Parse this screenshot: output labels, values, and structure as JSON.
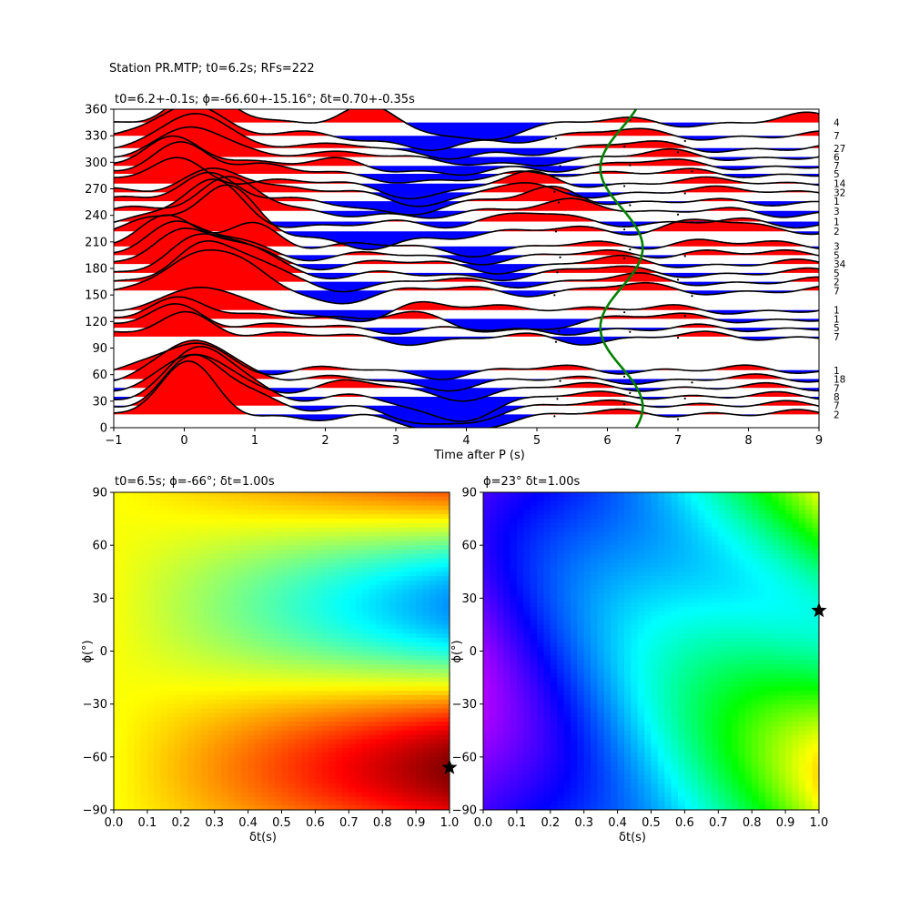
{
  "figure_title": "Station PR.MTP; t0=6.2s; RFs=222",
  "chart_data": [
    {
      "type": "line",
      "name": "receiver-function-section",
      "title": "t0=6.2+-0.1s; ϕ=-66.60+-15.16°; δt=0.70+-0.35s",
      "xlabel": "Time after P (s)",
      "ylabel": "",
      "xlim": [
        -1,
        9
      ],
      "ylim": [
        0,
        360
      ],
      "xticks": [
        "−1",
        "0",
        "1",
        "2",
        "3",
        "4",
        "5",
        "6",
        "7",
        "8",
        "9"
      ],
      "yticks": [
        "0",
        "30",
        "60",
        "90",
        "120",
        "150",
        "180",
        "210",
        "240",
        "270",
        "300",
        "330",
        "360"
      ],
      "fill_positive_color": "#ff0000",
      "fill_negative_color": "#0000ff",
      "trace_color": "#000000",
      "curve_color": "#008000",
      "traces": [
        {
          "baz": 15,
          "count": "2",
          "p1": [
            0.05,
            55
          ],
          "p2": [
            0.8,
            -7
          ],
          "n1": [
            3.6,
            -20
          ],
          "n2": [
            7.2,
            3
          ]
        },
        {
          "baz": 25,
          "count": "7",
          "p1": [
            0.15,
            50
          ],
          "p2": [
            0.9,
            10
          ],
          "n1": [
            3.5,
            -24
          ],
          "n2": [
            7.0,
            4
          ]
        },
        {
          "baz": 35,
          "count": "8",
          "p1": [
            0.25,
            52
          ],
          "p2": [
            0.95,
            8
          ],
          "n1": [
            3.7,
            -24
          ],
          "n2": [
            6.8,
            3
          ]
        },
        {
          "baz": 45,
          "count": "7",
          "p1": [
            0.2,
            36
          ],
          "p2": [
            2.4,
            5
          ],
          "n1": [
            3.8,
            -8
          ],
          "n2": [
            6.7,
            2
          ]
        },
        {
          "baz": 55,
          "count": "18",
          "p1": [
            0.15,
            42
          ],
          "p2": [
            1.0,
            8
          ],
          "n1": [
            3.4,
            -8
          ],
          "n2": [
            5.3,
            -3
          ]
        },
        {
          "baz": 65,
          "count": "1",
          "p1": [
            0.15,
            30
          ],
          "p2": [
            1.0,
            0
          ],
          "n1": [
            3.3,
            -4
          ],
          "n2": [
            6.5,
            2
          ]
        },
        {
          "baz": 103,
          "count": "7",
          "p1": [
            0.05,
            27
          ],
          "p2": [
            1.2,
            0
          ],
          "n1": [
            3.8,
            -5
          ],
          "n2": [
            5.7,
            -3
          ]
        },
        {
          "baz": 113,
          "count": "5",
          "p1": [
            -0.1,
            26
          ],
          "p2": [
            1.1,
            0
          ],
          "n1": [
            4.6,
            -6
          ],
          "n2": [
            6.8,
            -3
          ]
        },
        {
          "baz": 123,
          "count": "1",
          "p1": [
            0.0,
            26
          ],
          "p2": [
            3.1,
            12
          ],
          "n1": [
            4.4,
            -18
          ],
          "n2": [
            6.2,
            3
          ]
        },
        {
          "baz": 133,
          "count": "1",
          "p1": [
            0.2,
            30
          ],
          "p2": [
            3.2,
            8
          ],
          "n1": [
            2.2,
            -10
          ],
          "n2": [
            5.3,
            6
          ]
        },
        {
          "baz": 155,
          "count": "7",
          "p1": [
            0.1,
            40
          ],
          "p2": [
            0.9,
            25
          ],
          "n1": [
            1.9,
            -10
          ],
          "n2": [
            6.2,
            4
          ]
        },
        {
          "baz": 165,
          "count": "2",
          "p1": [
            0.2,
            38
          ],
          "p2": [
            1.0,
            20
          ],
          "n1": [
            2.5,
            -5
          ],
          "n2": [
            6.4,
            4
          ]
        },
        {
          "baz": 175,
          "count": "5",
          "p1": [
            0.1,
            34
          ],
          "p2": [
            0.9,
            26
          ],
          "n1": [
            3.7,
            -6
          ],
          "n2": [
            5.7,
            4
          ]
        },
        {
          "baz": 185,
          "count": "34",
          "p1": [
            -0.1,
            34
          ],
          "p2": [
            0.8,
            20
          ],
          "n1": [
            4.5,
            -4
          ],
          "n2": [
            6.3,
            4
          ]
        },
        {
          "baz": 195,
          "count": "5",
          "p1": [
            -0.2,
            32
          ],
          "p2": [
            0.7,
            16
          ],
          "n1": [
            3.8,
            -5
          ],
          "n2": [
            7.4,
            6
          ]
        },
        {
          "baz": 205,
          "count": "3",
          "p1": [
            -0.3,
            30
          ],
          "p2": [
            1.0,
            25
          ],
          "n1": [
            3.9,
            -5
          ],
          "n2": [
            7.3,
            8
          ]
        },
        {
          "baz": 222,
          "count": "2",
          "p1": [
            0.6,
            50
          ],
          "p2": [
            -0.6,
            10
          ],
          "n1": [
            2.6,
            -22
          ],
          "n2": [
            7.3,
            14
          ]
        },
        {
          "baz": 233,
          "count": "1",
          "p1": [
            0.4,
            46
          ],
          "p2": [
            4.8,
            8
          ],
          "n1": [
            2.0,
            -8
          ],
          "n2": [
            8.5,
            -4
          ]
        },
        {
          "baz": 245,
          "count": "3",
          "p1": [
            0.7,
            40
          ],
          "p2": [
            5.7,
            12
          ],
          "n1": [
            2.4,
            -8
          ],
          "n2": [
            8.3,
            -4
          ]
        },
        {
          "baz": 256,
          "count": "1",
          "p1": [
            0.4,
            32
          ],
          "p2": [
            5.3,
            12
          ],
          "n1": [
            2.8,
            -12
          ],
          "n2": [
            7.8,
            -3
          ]
        },
        {
          "baz": 266,
          "count": "32",
          "p1": [
            0.5,
            30
          ],
          "p2": [
            4.6,
            8
          ],
          "n1": [
            3.6,
            -10
          ],
          "n2": [
            8.2,
            4
          ]
        },
        {
          "baz": 276,
          "count": "14",
          "p1": [
            -0.1,
            28
          ],
          "p2": [
            5.0,
            10
          ],
          "n1": [
            3.5,
            -12
          ],
          "n2": [
            8.0,
            4
          ]
        },
        {
          "baz": 287,
          "count": "5",
          "p1": [
            0.0,
            36
          ],
          "p2": [
            1.1,
            6
          ],
          "n1": [
            3.8,
            -10
          ],
          "n2": [
            5.6,
            4
          ]
        },
        {
          "baz": 296,
          "count": "7",
          "p1": [
            -0.1,
            34
          ],
          "p2": [
            2.3,
            8
          ],
          "n1": [
            3.9,
            -12
          ],
          "n2": [
            6.4,
            4
          ]
        },
        {
          "baz": 306,
          "count": "6",
          "p1": [
            0.1,
            38
          ],
          "p2": [
            2.5,
            10
          ],
          "n1": [
            4.2,
            -12
          ],
          "n2": [
            6.9,
            3
          ]
        },
        {
          "baz": 316,
          "count": "27",
          "p1": [
            0.1,
            42
          ],
          "p2": [
            2.4,
            10
          ],
          "n1": [
            3.8,
            -14
          ],
          "n2": [
            6.2,
            4
          ]
        },
        {
          "baz": 330,
          "count": "7",
          "p1": [
            0.0,
            36
          ],
          "p2": [
            2.0,
            6
          ],
          "n1": [
            3.5,
            -18
          ],
          "n2": [
            6.0,
            4
          ]
        },
        {
          "baz": 345,
          "count": "4",
          "p1": [
            0.2,
            34
          ],
          "p2": [
            2.5,
            20
          ],
          "n1": [
            3.9,
            -20
          ],
          "n2": [
            8.8,
            6
          ]
        }
      ],
      "green_curve": {
        "center": 6.2,
        "amplitude": 0.3,
        "period_deg": 180,
        "phase_deg": -66.6
      }
    },
    {
      "type": "heatmap",
      "name": "energy-map-left",
      "title": "t0=6.5s; ϕ=-66°; δt=1.00s",
      "xlabel": "δt(s)",
      "ylabel": "ϕ(°)",
      "xlim": [
        0.0,
        1.0
      ],
      "ylim": [
        -90,
        90
      ],
      "xticks": [
        "0.0",
        "0.1",
        "0.2",
        "0.3",
        "0.4",
        "0.5",
        "0.6",
        "0.7",
        "0.8",
        "0.9",
        "1.0"
      ],
      "yticks": [
        "−90",
        "−60",
        "−30",
        "0",
        "30",
        "60",
        "90"
      ],
      "colormap": "jet",
      "marker": {
        "symbol": "star",
        "x": 1.0,
        "y": -66
      }
    },
    {
      "type": "heatmap",
      "name": "energy-map-right",
      "title": "ϕ=23° δt=1.00s",
      "xlabel": "δt(s)",
      "ylabel": "ϕ(°)",
      "xlim": [
        0.0,
        1.0
      ],
      "ylim": [
        -90,
        90
      ],
      "xticks": [
        "0.0",
        "0.1",
        "0.2",
        "0.3",
        "0.4",
        "0.5",
        "0.6",
        "0.7",
        "0.8",
        "0.9",
        "1.0"
      ],
      "yticks": [
        "−90",
        "−60",
        "−30",
        "0",
        "30",
        "60",
        "90"
      ],
      "colormap": "hsv",
      "marker": {
        "symbol": "star",
        "x": 1.0,
        "y": 23
      }
    }
  ]
}
